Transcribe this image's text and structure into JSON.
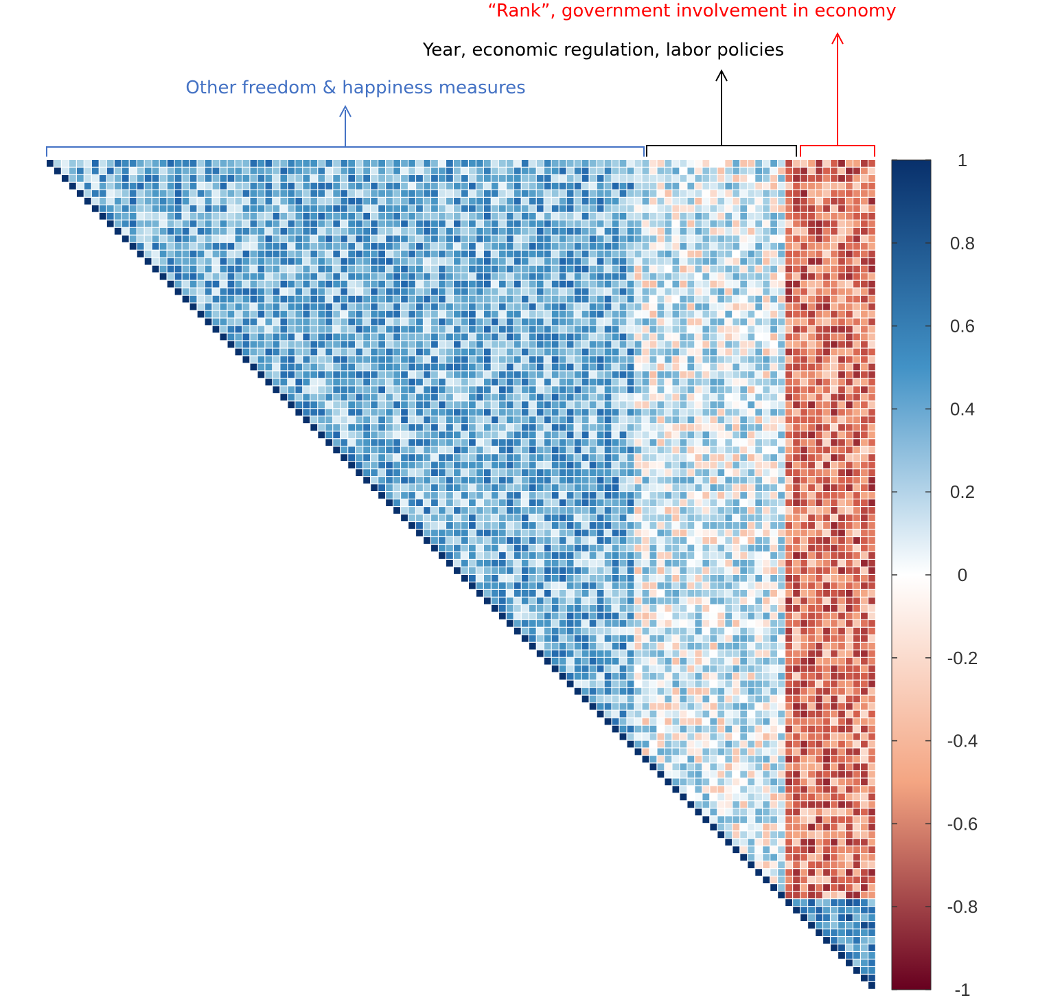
{
  "chart_data": {
    "type": "heatmap",
    "subtype": "correlation-matrix-upper-triangle",
    "n_variables": 110,
    "groups": [
      {
        "label": "Other freedom & happiness measures",
        "var_range": [
          0,
          78
        ],
        "color": "#4472c4"
      },
      {
        "label": "Year, economic regulation, labor policies",
        "var_range": [
          78,
          98
        ],
        "color": "#000000"
      },
      {
        "label": "“Rank”, government involvement in economy",
        "var_range": [
          98,
          110
        ],
        "color": "#ff0000"
      }
    ],
    "block_means": [
      {
        "rows": [
          0,
          78
        ],
        "cols": [
          0,
          78
        ],
        "mean": 0.4
      },
      {
        "rows": [
          0,
          78
        ],
        "cols": [
          78,
          98
        ],
        "mean": 0.12
      },
      {
        "rows": [
          0,
          98
        ],
        "cols": [
          98,
          110
        ],
        "mean": -0.45
      },
      {
        "rows": [
          78,
          98
        ],
        "cols": [
          78,
          98
        ],
        "mean": 0.1
      },
      {
        "rows": [
          98,
          110
        ],
        "cols": [
          98,
          110
        ],
        "mean": 0.55
      }
    ],
    "diagonal": 1,
    "colorbar": {
      "range": [
        -1,
        1
      ],
      "ticks": [
        "1",
        "0.8",
        "0.6",
        "0.4",
        "0.2",
        "0",
        "-0.2",
        "-0.4",
        "-0.6",
        "-0.8",
        "-1"
      ],
      "colors": {
        "high": "#08306b",
        "mid": "#ffffff",
        "low": "#67001f"
      }
    }
  }
}
